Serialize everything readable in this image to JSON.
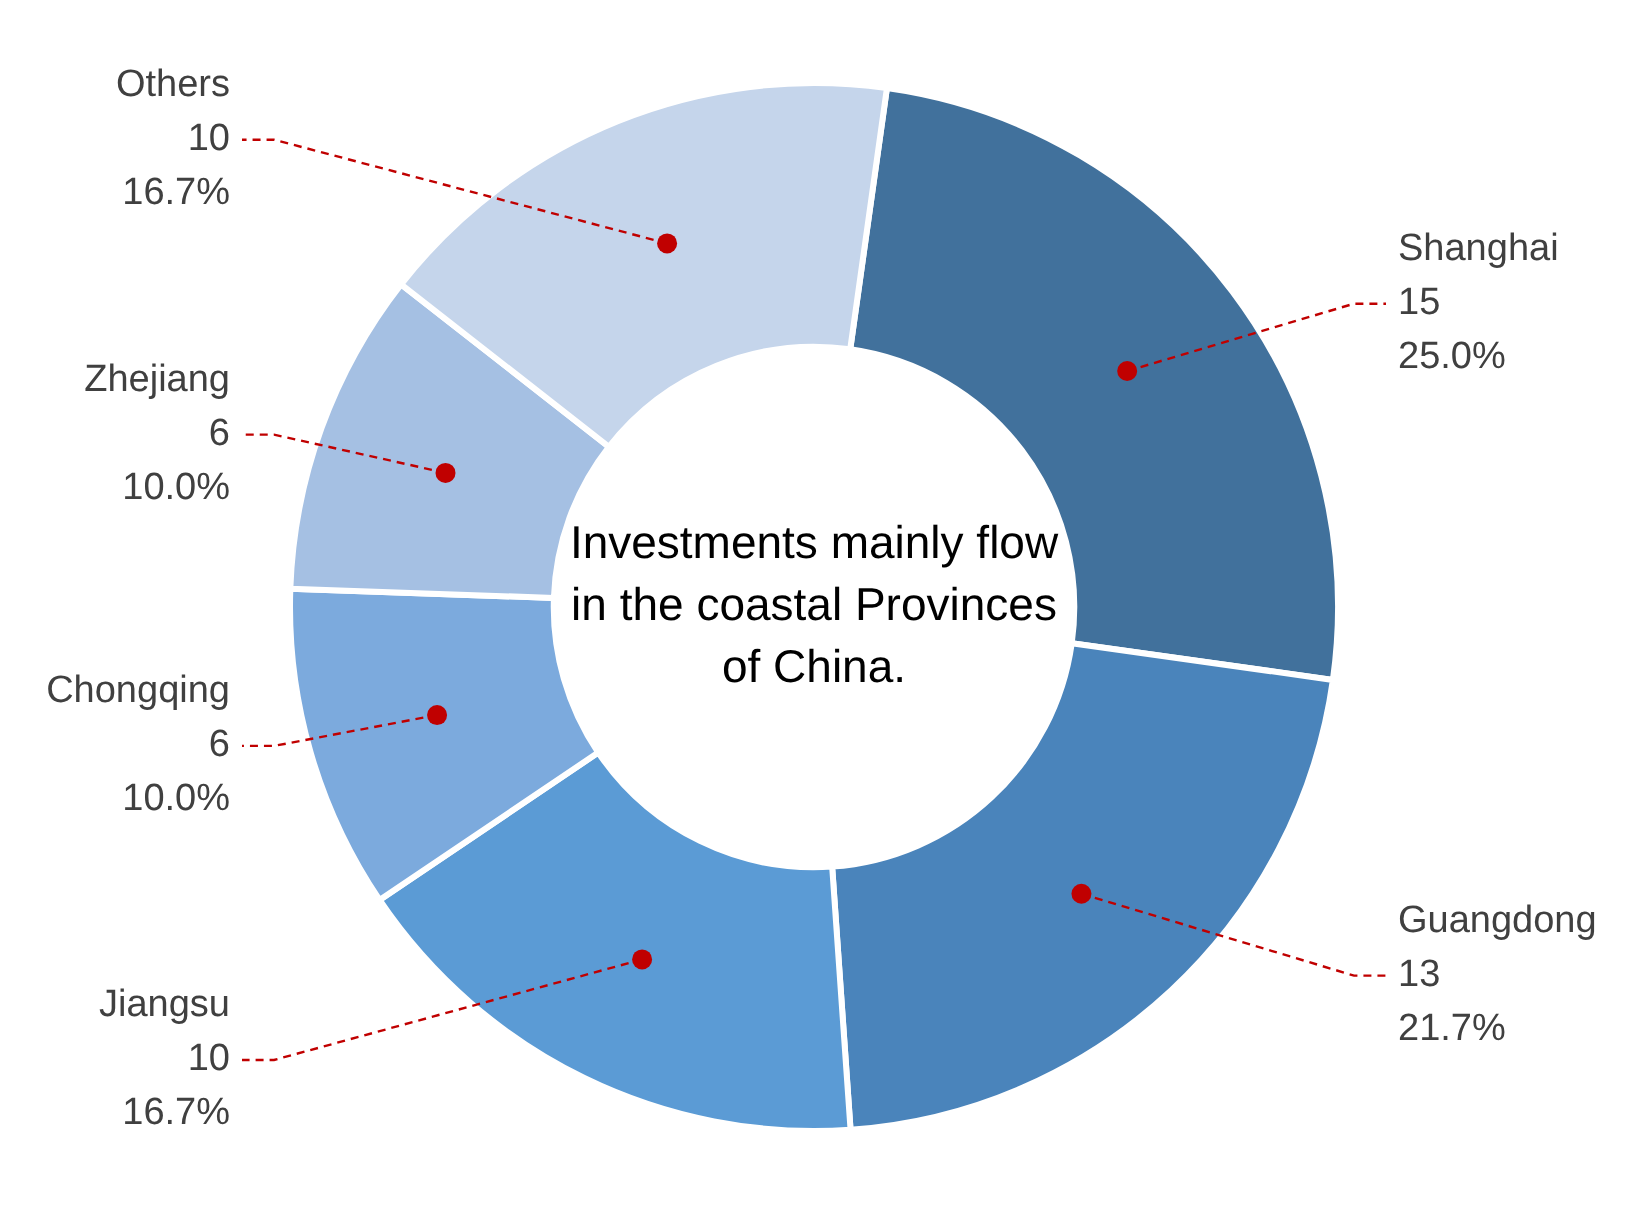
{
  "chart_data": {
    "type": "donut",
    "categories": [
      "Shanghai",
      "Guangdong",
      "Jiangsu",
      "Chongqing",
      "Zhejiang",
      "Others"
    ],
    "values": [
      15,
      13,
      10,
      6,
      6,
      10
    ],
    "value_labels": [
      "15\n25.0%",
      "13\n21.7%",
      "10\n16.7%",
      "6\n10.0%",
      "6\n10.0%",
      "10\n16.7%"
    ],
    "colors": [
      "#41719c",
      "#4a84bb",
      "#5b9bd5",
      "#7caadd",
      "#a5c0e3",
      "#c5d5eb"
    ],
    "annotations": [
      "Investments mainly flow in the coastal Provinces of China."
    ],
    "legend": false
  }
}
